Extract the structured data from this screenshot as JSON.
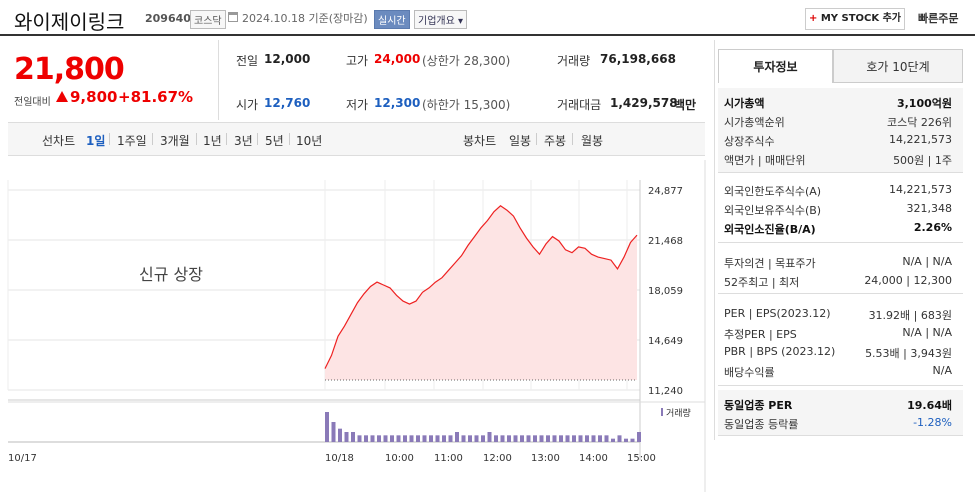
{
  "header": {
    "stock_name": "와이제이링크",
    "stock_code": "209640",
    "market_tag": "코스닥",
    "date_text": "2024.10.18  기준(장마감)",
    "live_tag": "실시간",
    "info_tag": "기업개요 ▾",
    "mystock_plus": "+",
    "mystock_label": " MY STOCK 추가",
    "quick_order": "빠른주문"
  },
  "price": {
    "current": "21,800",
    "prev_label": "전일대비",
    "change": "9,800",
    "change_pct": "+81.67%"
  },
  "summary": {
    "prev_close_label": "전일",
    "prev_close": "12,000",
    "high_label": "고가",
    "high": "24,000",
    "upper_limit": "(상한가 28,300)",
    "volume_label": "거래량",
    "volume": "76,198,668",
    "open_label": "시가",
    "open": "12,760",
    "low_label": "저가",
    "low": "12,300",
    "lower_limit": "(하한가 15,300)",
    "amount_label": "거래대금",
    "amount": "1,429,578",
    "amount_unit": "백만"
  },
  "chart_tabs": {
    "line_label": "선차트",
    "periods": [
      "1일",
      "1주일",
      "3개월",
      "1년",
      "3년",
      "5년",
      "10년"
    ],
    "active_period": "1일",
    "candle_label": "봉차트",
    "candles": [
      "일봉",
      "주봉",
      "월봉"
    ]
  },
  "chart_data": {
    "type": "area",
    "annotation": "신규 상장",
    "y_ticks": [
      "24,877",
      "21,468",
      "18,059",
      "14,649",
      "11,240"
    ],
    "ylim": [
      11240,
      24877
    ],
    "x_ticks": [
      "10/17",
      "10/18",
      "10:00",
      "11:00",
      "12:00",
      "13:00",
      "14:00",
      "15:00"
    ],
    "volume_legend": "거래량",
    "price_series": [
      12700,
      13600,
      14900,
      15600,
      16400,
      17200,
      17800,
      18300,
      18600,
      18400,
      18200,
      17700,
      17300,
      17100,
      17300,
      17900,
      18200,
      18600,
      18900,
      19400,
      19900,
      20400,
      21100,
      21700,
      22300,
      22800,
      23400,
      23800,
      23500,
      23100,
      22300,
      21600,
      21000,
      20500,
      21200,
      21700,
      21400,
      20800,
      20600,
      21000,
      20900,
      20500,
      20300,
      20200,
      20100,
      19500,
      20300,
      21300,
      21800
    ],
    "volume_series": [
      9,
      6,
      4,
      3,
      3,
      2,
      2,
      2,
      2,
      2,
      2,
      2,
      2,
      2,
      2,
      2,
      2,
      2,
      2,
      2,
      3,
      2,
      2,
      2,
      2,
      3,
      2,
      2,
      2,
      2,
      2,
      2,
      2,
      2,
      2,
      2,
      2,
      2,
      2,
      2,
      2,
      2,
      2,
      2,
      1,
      2,
      1,
      1,
      3
    ]
  },
  "right_panel": {
    "tab_active": "투자정보",
    "tab_idle": "호가 10단계",
    "sec1": [
      {
        "k": "시가총액",
        "v": "3,100억원",
        "bold": true
      },
      {
        "k": "시가총액순위",
        "v": "코스닥 226위"
      },
      {
        "k": "상장주식수",
        "v": "14,221,573"
      },
      {
        "k": "액면가 | 매매단위",
        "v": "500원 | 1주"
      }
    ],
    "sec2": [
      {
        "k": "외국인한도주식수(A)",
        "v": "14,221,573"
      },
      {
        "k": "외국인보유주식수(B)",
        "v": "321,348"
      },
      {
        "k": "외국인소진율(B/A)",
        "v": "2.26%",
        "bold": true
      }
    ],
    "sec3": [
      {
        "k": "투자의견 | 목표주가",
        "v": "N/A | N/A"
      },
      {
        "k": "52주최고 | 최저",
        "v": "24,000 | 12,300"
      }
    ],
    "sec4": [
      {
        "k": "PER | EPS(2023.12)",
        "v": "31.92배 | 683원"
      },
      {
        "k": "추정PER | EPS",
        "v": "N/A | N/A"
      },
      {
        "k": "PBR | BPS (2023.12)",
        "v": "5.53배 | 3,943원"
      },
      {
        "k": "배당수익률",
        "v": "N/A"
      }
    ],
    "sec5": [
      {
        "k": "동일업종 PER",
        "v": "19.64배",
        "bold": true
      },
      {
        "k": "동일업종 등락률",
        "v": "-1.28%"
      }
    ]
  }
}
